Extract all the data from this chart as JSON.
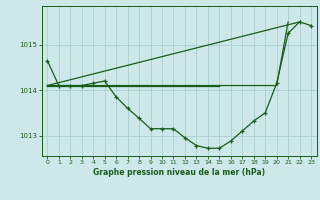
{
  "title": "Graphe pression niveau de la mer (hPa)",
  "bg_color": "#cce8e8",
  "grid_color": "#aacfcf",
  "line_color": "#1a5c1a",
  "xlim": [
    -0.5,
    23.5
  ],
  "ylim": [
    1012.55,
    1015.85
  ],
  "yticks": [
    1013,
    1014,
    1015
  ],
  "xticks": [
    0,
    1,
    2,
    3,
    4,
    5,
    6,
    7,
    8,
    9,
    10,
    11,
    12,
    13,
    14,
    15,
    16,
    17,
    18,
    19,
    20,
    21,
    22,
    23
  ],
  "series": [
    {
      "x": [
        0,
        1,
        2,
        3,
        4,
        5,
        6,
        7,
        8,
        9,
        10,
        11,
        12,
        13,
        14,
        15,
        16,
        17,
        18,
        19,
        20,
        21,
        22,
        23
      ],
      "y": [
        1014.65,
        1014.1,
        1014.1,
        1014.1,
        1014.15,
        1014.2,
        1013.85,
        1013.6,
        1013.38,
        1013.15,
        1013.15,
        1013.15,
        1012.95,
        1012.78,
        1012.72,
        1012.72,
        1012.88,
        1013.1,
        1013.32,
        1013.5,
        1014.15,
        1015.25,
        1015.5,
        1015.42
      ],
      "marker": true,
      "lw": 0.9
    },
    {
      "x": [
        0,
        15
      ],
      "y": [
        1014.1,
        1014.1
      ],
      "marker": false,
      "lw": 0.9
    },
    {
      "x": [
        0,
        22
      ],
      "y": [
        1014.1,
        1015.5
      ],
      "marker": false,
      "lw": 0.9
    },
    {
      "x": [
        0,
        5,
        20,
        21
      ],
      "y": [
        1014.1,
        1014.1,
        1014.1,
        1015.5
      ],
      "marker": false,
      "lw": 0.9
    }
  ]
}
